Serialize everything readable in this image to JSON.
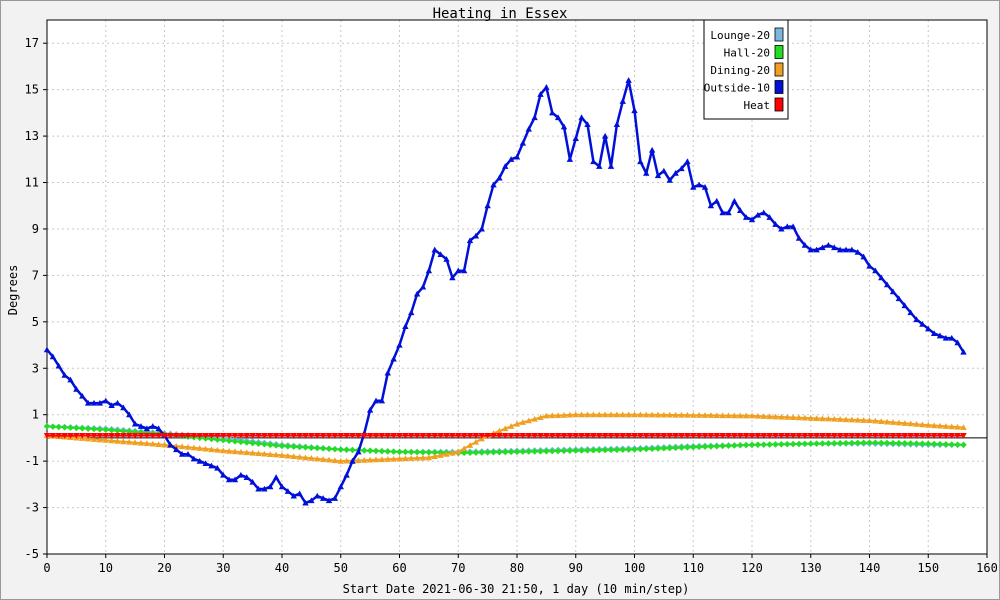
{
  "chart_data": {
    "type": "line",
    "title": "Heating in Essex",
    "xlabel": "Start Date 2021-06-30 21:50, 1 day (10 min/step)",
    "ylabel": "Degrees",
    "xlim": [
      0,
      160
    ],
    "ylim": [
      -5,
      18
    ],
    "x_ticks": [
      0,
      10,
      20,
      30,
      40,
      50,
      60,
      70,
      80,
      90,
      100,
      110,
      120,
      130,
      140,
      150,
      160
    ],
    "y_ticks": [
      -5,
      -3,
      -1,
      1,
      3,
      5,
      7,
      9,
      11,
      13,
      15,
      17
    ],
    "grid": true,
    "legend_position": "top-right",
    "series": [
      {
        "name": "Lounge-20",
        "color": "#7ab8e0",
        "marker": "diamond",
        "points": [
          [
            0,
            0.5
          ],
          [
            10,
            0.4
          ],
          [
            20,
            0.2
          ],
          [
            30,
            0.0
          ],
          [
            40,
            -0.3
          ],
          [
            50,
            -0.5
          ],
          [
            55,
            -0.55
          ],
          [
            60,
            -0.6
          ],
          [
            70,
            -0.6
          ],
          [
            80,
            -0.55
          ],
          [
            90,
            -0.5
          ],
          [
            100,
            -0.45
          ],
          [
            110,
            -0.35
          ],
          [
            120,
            -0.3
          ],
          [
            130,
            -0.25
          ],
          [
            140,
            -0.25
          ],
          [
            150,
            -0.3
          ],
          [
            156,
            -0.3
          ]
        ]
      },
      {
        "name": "Hall-20",
        "color": "#22dd22",
        "marker": "diamond",
        "points": [
          [
            0,
            0.5
          ],
          [
            10,
            0.35
          ],
          [
            20,
            0.15
          ],
          [
            30,
            -0.1
          ],
          [
            40,
            -0.35
          ],
          [
            50,
            -0.5
          ],
          [
            60,
            -0.6
          ],
          [
            70,
            -0.65
          ],
          [
            80,
            -0.6
          ],
          [
            90,
            -0.55
          ],
          [
            100,
            -0.5
          ],
          [
            110,
            -0.4
          ],
          [
            120,
            -0.3
          ],
          [
            130,
            -0.25
          ],
          [
            140,
            -0.2
          ],
          [
            150,
            -0.25
          ],
          [
            156,
            -0.3
          ]
        ]
      },
      {
        "name": "Dining-20",
        "color": "#f0a020",
        "marker": "triangle",
        "points": [
          [
            0,
            0.1
          ],
          [
            10,
            -0.1
          ],
          [
            20,
            -0.3
          ],
          [
            30,
            -0.55
          ],
          [
            40,
            -0.75
          ],
          [
            50,
            -1.0
          ],
          [
            55,
            -0.95
          ],
          [
            60,
            -0.9
          ],
          [
            65,
            -0.85
          ],
          [
            70,
            -0.6
          ],
          [
            75,
            0.1
          ],
          [
            80,
            0.6
          ],
          [
            85,
            0.95
          ],
          [
            90,
            1.0
          ],
          [
            100,
            1.0
          ],
          [
            110,
            0.98
          ],
          [
            120,
            0.95
          ],
          [
            130,
            0.85
          ],
          [
            140,
            0.75
          ],
          [
            150,
            0.55
          ],
          [
            156,
            0.45
          ]
        ]
      },
      {
        "name": "Outside-10",
        "color": "#0010d8",
        "marker": "triangle",
        "points": [
          [
            0,
            3.8
          ],
          [
            1,
            3.5
          ],
          [
            2,
            3.1
          ],
          [
            3,
            2.7
          ],
          [
            4,
            2.5
          ],
          [
            5,
            2.1
          ],
          [
            6,
            1.8
          ],
          [
            7,
            1.5
          ],
          [
            8,
            1.5
          ],
          [
            9,
            1.5
          ],
          [
            10,
            1.6
          ],
          [
            11,
            1.4
          ],
          [
            12,
            1.5
          ],
          [
            13,
            1.3
          ],
          [
            14,
            1.0
          ],
          [
            15,
            0.6
          ],
          [
            16,
            0.5
          ],
          [
            17,
            0.4
          ],
          [
            18,
            0.5
          ],
          [
            19,
            0.4
          ],
          [
            20,
            0.1
          ],
          [
            21,
            -0.3
          ],
          [
            22,
            -0.5
          ],
          [
            23,
            -0.7
          ],
          [
            24,
            -0.7
          ],
          [
            25,
            -0.9
          ],
          [
            26,
            -1.0
          ],
          [
            27,
            -1.1
          ],
          [
            28,
            -1.2
          ],
          [
            29,
            -1.3
          ],
          [
            30,
            -1.6
          ],
          [
            31,
            -1.8
          ],
          [
            32,
            -1.8
          ],
          [
            33,
            -1.6
          ],
          [
            34,
            -1.7
          ],
          [
            35,
            -1.9
          ],
          [
            36,
            -2.2
          ],
          [
            37,
            -2.2
          ],
          [
            38,
            -2.1
          ],
          [
            39,
            -1.7
          ],
          [
            40,
            -2.1
          ],
          [
            41,
            -2.3
          ],
          [
            42,
            -2.5
          ],
          [
            43,
            -2.4
          ],
          [
            44,
            -2.8
          ],
          [
            45,
            -2.7
          ],
          [
            46,
            -2.5
          ],
          [
            47,
            -2.6
          ],
          [
            48,
            -2.7
          ],
          [
            49,
            -2.6
          ],
          [
            50,
            -2.1
          ],
          [
            51,
            -1.6
          ],
          [
            52,
            -1.0
          ],
          [
            53,
            -0.6
          ],
          [
            54,
            0.2
          ],
          [
            55,
            1.2
          ],
          [
            56,
            1.6
          ],
          [
            57,
            1.6
          ],
          [
            58,
            2.8
          ],
          [
            59,
            3.4
          ],
          [
            60,
            4.0
          ],
          [
            61,
            4.8
          ],
          [
            62,
            5.4
          ],
          [
            63,
            6.2
          ],
          [
            64,
            6.5
          ],
          [
            65,
            7.2
          ],
          [
            66,
            8.1
          ],
          [
            67,
            7.9
          ],
          [
            68,
            7.7
          ],
          [
            69,
            6.9
          ],
          [
            70,
            7.2
          ],
          [
            71,
            7.2
          ],
          [
            72,
            8.5
          ],
          [
            73,
            8.7
          ],
          [
            74,
            9.0
          ],
          [
            75,
            10.0
          ],
          [
            76,
            10.9
          ],
          [
            77,
            11.2
          ],
          [
            78,
            11.7
          ],
          [
            79,
            12.0
          ],
          [
            80,
            12.1
          ],
          [
            81,
            12.7
          ],
          [
            82,
            13.3
          ],
          [
            83,
            13.8
          ],
          [
            84,
            14.8
          ],
          [
            85,
            15.1
          ],
          [
            86,
            14.0
          ],
          [
            87,
            13.8
          ],
          [
            88,
            13.4
          ],
          [
            89,
            12.0
          ],
          [
            90,
            12.9
          ],
          [
            91,
            13.8
          ],
          [
            92,
            13.5
          ],
          [
            93,
            11.9
          ],
          [
            94,
            11.7
          ],
          [
            95,
            13.0
          ],
          [
            96,
            11.7
          ],
          [
            97,
            13.5
          ],
          [
            98,
            14.5
          ],
          [
            99,
            15.4
          ],
          [
            100,
            14.1
          ],
          [
            101,
            11.9
          ],
          [
            102,
            11.4
          ],
          [
            103,
            12.4
          ],
          [
            104,
            11.3
          ],
          [
            105,
            11.5
          ],
          [
            106,
            11.1
          ],
          [
            107,
            11.4
          ],
          [
            108,
            11.6
          ],
          [
            109,
            11.9
          ],
          [
            110,
            10.8
          ],
          [
            111,
            10.9
          ],
          [
            112,
            10.8
          ],
          [
            113,
            10.0
          ],
          [
            114,
            10.2
          ],
          [
            115,
            9.7
          ],
          [
            116,
            9.7
          ],
          [
            117,
            10.2
          ],
          [
            118,
            9.8
          ],
          [
            119,
            9.5
          ],
          [
            120,
            9.4
          ],
          [
            121,
            9.6
          ],
          [
            122,
            9.7
          ],
          [
            123,
            9.5
          ],
          [
            124,
            9.2
          ],
          [
            125,
            9.0
          ],
          [
            126,
            9.1
          ],
          [
            127,
            9.1
          ],
          [
            128,
            8.6
          ],
          [
            129,
            8.3
          ],
          [
            130,
            8.1
          ],
          [
            131,
            8.1
          ],
          [
            132,
            8.2
          ],
          [
            133,
            8.3
          ],
          [
            134,
            8.2
          ],
          [
            135,
            8.1
          ],
          [
            136,
            8.1
          ],
          [
            137,
            8.1
          ],
          [
            138,
            8.0
          ],
          [
            139,
            7.8
          ],
          [
            140,
            7.4
          ],
          [
            141,
            7.2
          ],
          [
            142,
            6.9
          ],
          [
            143,
            6.6
          ],
          [
            144,
            6.3
          ],
          [
            145,
            6.0
          ],
          [
            146,
            5.7
          ],
          [
            147,
            5.4
          ],
          [
            148,
            5.1
          ],
          [
            149,
            4.9
          ],
          [
            150,
            4.7
          ],
          [
            151,
            4.5
          ],
          [
            152,
            4.4
          ],
          [
            153,
            4.3
          ],
          [
            154,
            4.3
          ],
          [
            155,
            4.1
          ],
          [
            156,
            3.7
          ]
        ]
      },
      {
        "name": "Heat",
        "color": "#ff0000",
        "marker": "triangle-down",
        "points": [
          [
            0,
            0.1
          ],
          [
            156,
            0.1
          ]
        ]
      }
    ]
  }
}
